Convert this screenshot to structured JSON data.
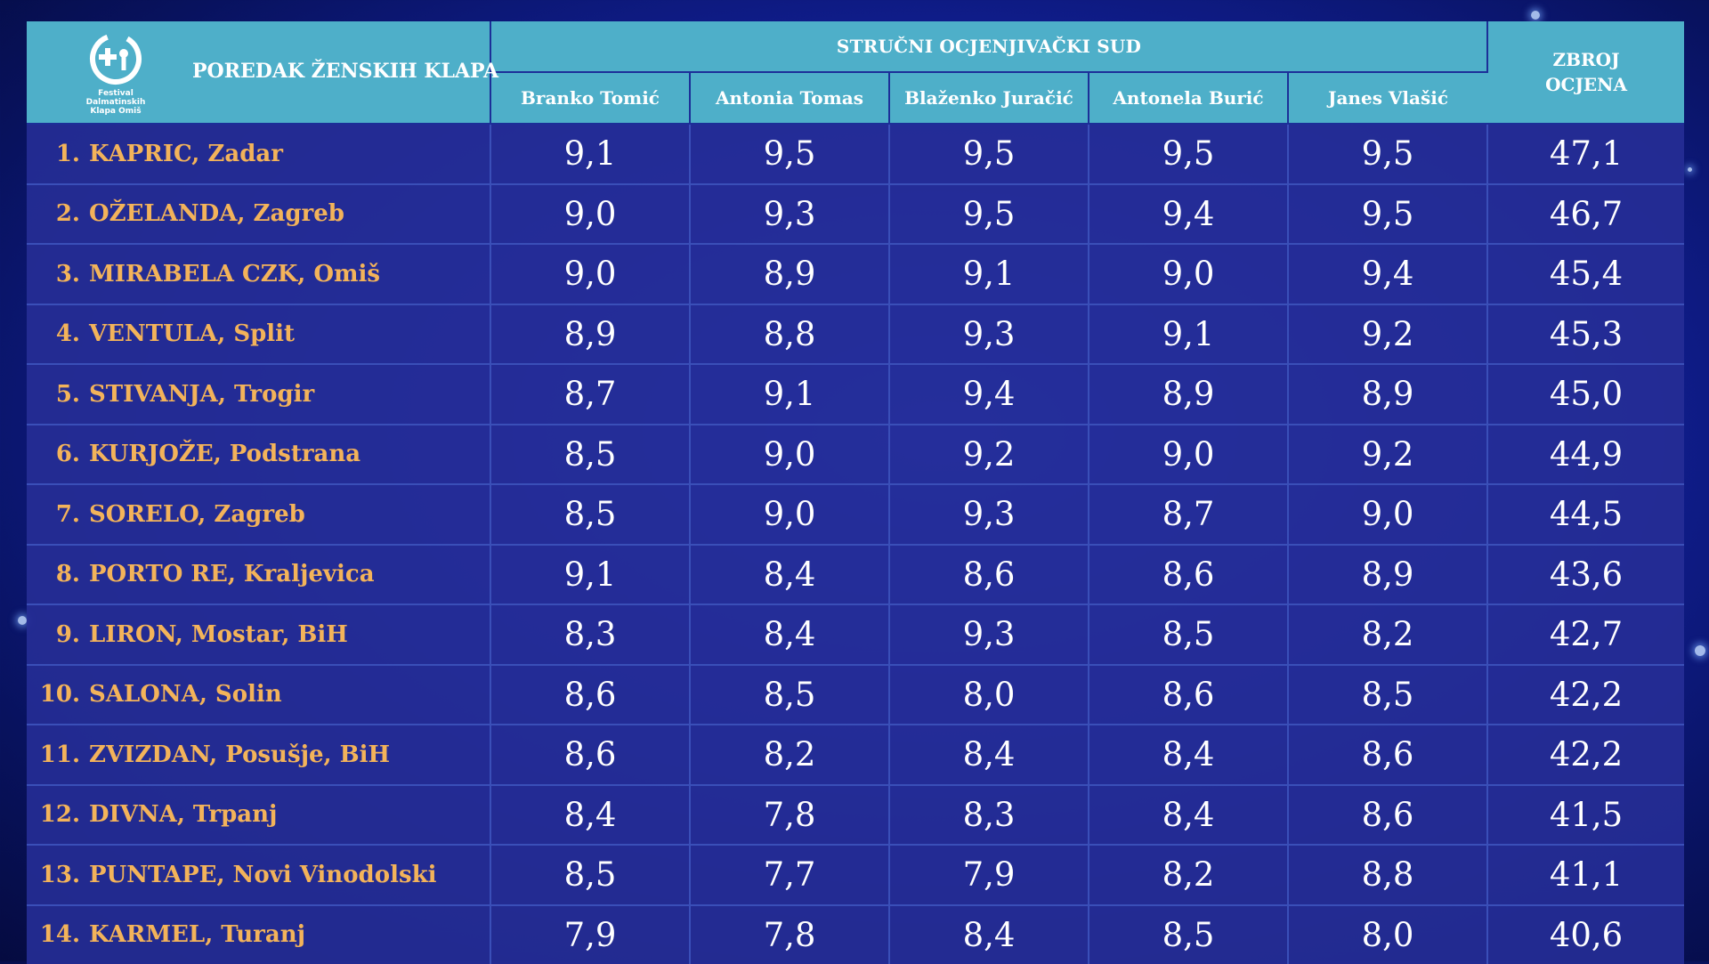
{
  "logo": {
    "icon": "festival-logo-icon",
    "line1": "Festival",
    "line2": "Dalmatinskih",
    "line3": "Klapa Omiš"
  },
  "header": {
    "title": "POREDAK ŽENSKIH KLAPA",
    "panel": "STRUČNI OCJENJIVAČKI SUD",
    "total_line1": "ZBROJ",
    "total_line2": "OCJENA",
    "judges": [
      "Branko Tomić",
      "Antonia Tomas",
      "Blaženko Juračić",
      "Antonela Burić",
      "Janes Vlašić"
    ]
  },
  "rows": [
    {
      "rank": "1.",
      "name": "KAPRIC, Zadar",
      "scores": [
        "9,1",
        "9,5",
        "9,5",
        "9,5",
        "9,5"
      ],
      "total": "47,1"
    },
    {
      "rank": "2.",
      "name": "OŽELANDA, Zagreb",
      "scores": [
        "9,0",
        "9,3",
        "9,5",
        "9,4",
        "9,5"
      ],
      "total": "46,7"
    },
    {
      "rank": "3.",
      "name": "MIRABELA CZK, Omiš",
      "scores": [
        "9,0",
        "8,9",
        "9,1",
        "9,0",
        "9,4"
      ],
      "total": "45,4"
    },
    {
      "rank": "4.",
      "name": "VENTULA, Split",
      "scores": [
        "8,9",
        "8,8",
        "9,3",
        "9,1",
        "9,2"
      ],
      "total": "45,3"
    },
    {
      "rank": "5.",
      "name": "STIVANJA, Trogir",
      "scores": [
        "8,7",
        "9,1",
        "9,4",
        "8,9",
        "8,9"
      ],
      "total": "45,0"
    },
    {
      "rank": "6.",
      "name": "KURJOŽE, Podstrana",
      "scores": [
        "8,5",
        "9,0",
        "9,2",
        "9,0",
        "9,2"
      ],
      "total": "44,9"
    },
    {
      "rank": "7.",
      "name": "SORELO, Zagreb",
      "scores": [
        "8,5",
        "9,0",
        "9,3",
        "8,7",
        "9,0"
      ],
      "total": "44,5"
    },
    {
      "rank": "8.",
      "name": "PORTO RE, Kraljevica",
      "scores": [
        "9,1",
        "8,4",
        "8,6",
        "8,6",
        "8,9"
      ],
      "total": "43,6"
    },
    {
      "rank": "9.",
      "name": "LIRON, Mostar, BiH",
      "scores": [
        "8,3",
        "8,4",
        "9,3",
        "8,5",
        "8,2"
      ],
      "total": "42,7"
    },
    {
      "rank": "10.",
      "name": "SALONA, Solin",
      "scores": [
        "8,6",
        "8,5",
        "8,0",
        "8,6",
        "8,5"
      ],
      "total": "42,2"
    },
    {
      "rank": "11.",
      "name": "ZVIZDAN, Posušje, BiH",
      "scores": [
        "8,6",
        "8,2",
        "8,4",
        "8,4",
        "8,6"
      ],
      "total": "42,2"
    },
    {
      "rank": "12.",
      "name": "DIVNA, Trpanj",
      "scores": [
        "8,4",
        "7,8",
        "8,3",
        "8,4",
        "8,6"
      ],
      "total": "41,5"
    },
    {
      "rank": "13.",
      "name": "PUNTAPE, Novi Vinodolski",
      "scores": [
        "8,5",
        "7,7",
        "7,9",
        "8,2",
        "8,8"
      ],
      "total": "41,1"
    },
    {
      "rank": "14.",
      "name": "KARMEL, Turanj",
      "scores": [
        "7,9",
        "7,8",
        "8,4",
        "8,5",
        "8,0"
      ],
      "total": "40,6"
    }
  ]
}
